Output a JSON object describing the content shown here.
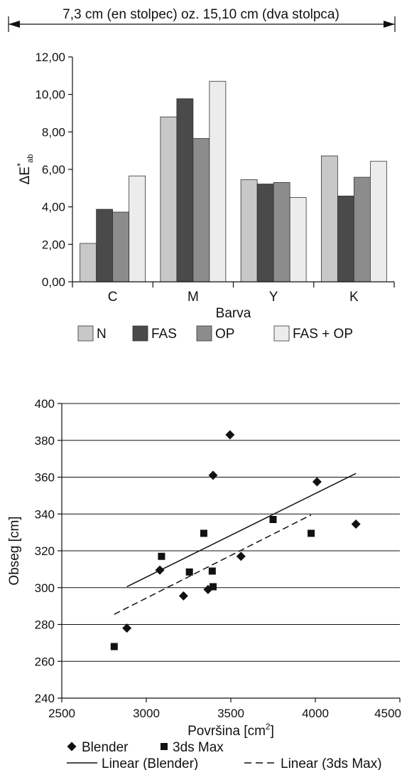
{
  "annotation": {
    "width_note": "7,3 cm (en stolpec) oz. 15,10 cm (dva stolpca)"
  },
  "chart_data": [
    {
      "type": "bar",
      "categories": [
        "C",
        "M",
        "Y",
        "K"
      ],
      "series": [
        {
          "name": "N",
          "values": [
            2.05,
            8.8,
            5.45,
            6.72
          ],
          "color": "#c8c8c8"
        },
        {
          "name": "FAS",
          "values": [
            3.87,
            9.77,
            5.22,
            4.58
          ],
          "color": "#4a4a4a"
        },
        {
          "name": "OP",
          "values": [
            3.72,
            7.65,
            5.3,
            5.58
          ],
          "color": "#8c8c8c"
        },
        {
          "name": "FAS + OP",
          "values": [
            5.65,
            10.7,
            4.5,
            6.43
          ],
          "color": "#ececec"
        }
      ],
      "xlabel": "Barva",
      "ylabel": "ΔE*ab",
      "ylabel_main": "ΔE",
      "ylabel_sup": "*",
      "ylabel_sub": "ab",
      "ylim": [
        0,
        12
      ],
      "yticks": [
        "0,00",
        "2,00",
        "4,00",
        "6,00",
        "8,00",
        "10,00",
        "12,00"
      ],
      "grid": false,
      "legend_position": "bottom"
    },
    {
      "type": "scatter",
      "series": [
        {
          "name": "Blender",
          "marker": "diamond",
          "points": [
            [
              2885,
              278
            ],
            [
              3080,
              309.5
            ],
            [
              3220,
              295.5
            ],
            [
              3365,
              299
            ],
            [
              3395,
              361
            ],
            [
              3495,
              383
            ],
            [
              3560,
              317
            ],
            [
              4010,
              357.5
            ],
            [
              4240,
              334.5
            ]
          ]
        },
        {
          "name": "3ds Max",
          "marker": "square",
          "points": [
            [
              2810,
              268
            ],
            [
              3090,
              317
            ],
            [
              3255,
              308.5
            ],
            [
              3340,
              329.5
            ],
            [
              3390,
              309
            ],
            [
              3395,
              300.5
            ],
            [
              3750,
              337
            ],
            [
              3975,
              329.5
            ]
          ]
        }
      ],
      "trendlines": [
        {
          "name": "Linear (Blender)",
          "style": "solid",
          "x": [
            2885,
            4240
          ],
          "y": [
            300.5,
            362
          ]
        },
        {
          "name": "Linear (3ds Max)",
          "style": "dashed",
          "x": [
            2810,
            3975
          ],
          "y": [
            285.5,
            339.5
          ]
        }
      ],
      "xlabel": "Površina [cm²]",
      "xlabel_main": "Površina [cm",
      "xlabel_sup": "2",
      "xlabel_end": "]",
      "ylabel": "Obseg [cm]",
      "xlim": [
        2500,
        4500
      ],
      "ylim": [
        240,
        400
      ],
      "xticks": [
        "2500",
        "3000",
        "3500",
        "4000",
        "4500"
      ],
      "yticks": [
        "240",
        "260",
        "280",
        "300",
        "320",
        "340",
        "360",
        "380",
        "400"
      ],
      "grid": true,
      "legend_position": "bottom"
    }
  ]
}
